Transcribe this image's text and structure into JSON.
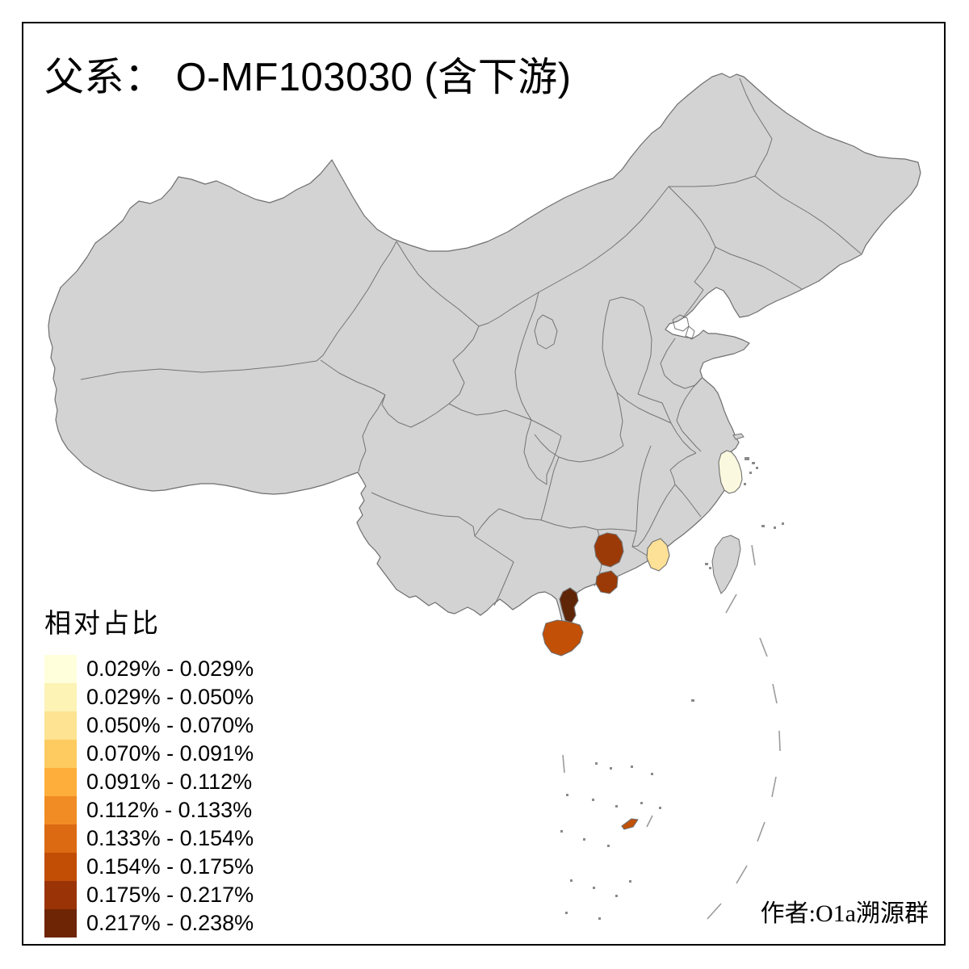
{
  "title": {
    "prefix": "父系：",
    "main": " O-MF103030 (含下游)"
  },
  "legend": {
    "title": "相对占比",
    "items": [
      {
        "label": "0.029% - 0.029%",
        "color": "#FFFFDC"
      },
      {
        "label": "0.029% - 0.050%",
        "color": "#FCF3B5"
      },
      {
        "label": "0.050% - 0.070%",
        "color": "#FDE392"
      },
      {
        "label": "0.070% - 0.091%",
        "color": "#FDCB60"
      },
      {
        "label": "0.091% - 0.112%",
        "color": "#FDAE3B"
      },
      {
        "label": "0.112% - 0.133%",
        "color": "#F08C23"
      },
      {
        "label": "0.133% - 0.154%",
        "color": "#DB6A12"
      },
      {
        "label": "0.154% - 0.175%",
        "color": "#C24D05"
      },
      {
        "label": "0.175% - 0.217%",
        "color": "#9A3406"
      },
      {
        "label": "0.217% - 0.238%",
        "color": "#6E2505"
      }
    ]
  },
  "attribution": "作者:O1a溯源群",
  "map": {
    "base_fill": "#D3D3D3",
    "border_color": "#6F6F6F",
    "background": "#FFFFFF",
    "frame_color": "#000000",
    "regions": [
      {
        "id": "shaoxing-ningbo-area",
        "color": "#FAF8DE",
        "value_range": "0.029% - 0.029%"
      },
      {
        "id": "heyuan-area",
        "color": "#FDE197",
        "value_range": "0.050% - 0.070%"
      },
      {
        "id": "wuzhou-area",
        "color": "#9C3A07",
        "value_range": "0.175% - 0.217%"
      },
      {
        "id": "maoming-area",
        "color": "#9C3A07",
        "value_range": "0.175% - 0.217%"
      },
      {
        "id": "zhanjiang-leizhou-area",
        "color": "#5F2507",
        "value_range": "0.217% - 0.238%"
      },
      {
        "id": "hainan-island",
        "color": "#C25007",
        "value_range": "0.154% - 0.175%"
      },
      {
        "id": "south-china-sea-island",
        "color": "#C25007",
        "value_range": "0.154% - 0.175%"
      }
    ]
  }
}
